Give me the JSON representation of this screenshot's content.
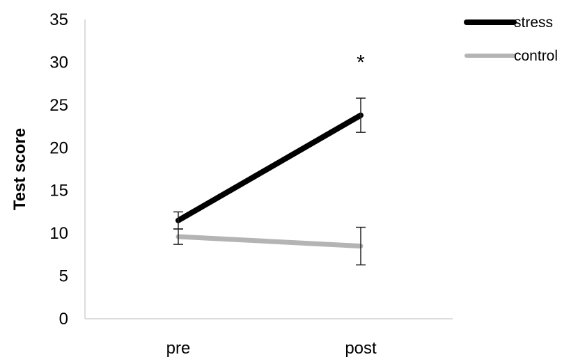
{
  "chart_data": {
    "type": "line",
    "categories": [
      "pre",
      "post"
    ],
    "ylabel": "Test score",
    "xlabel": "",
    "ylim": [
      0,
      35
    ],
    "yticks": [
      "0",
      "5",
      "10",
      "15",
      "20",
      "25",
      "30",
      "35"
    ],
    "grid": false,
    "legend_position": "top-right",
    "series": [
      {
        "name": "stress",
        "values": [
          11.5,
          23.8
        ],
        "errors": [
          1.0,
          2.0
        ],
        "color": "#000000"
      },
      {
        "name": "control",
        "values": [
          9.6,
          8.5
        ],
        "errors": [
          0.9,
          2.2
        ],
        "color": "#b4b4b4"
      }
    ],
    "annotations": [
      {
        "text": "*",
        "category": "post",
        "y": 30.5
      }
    ]
  }
}
